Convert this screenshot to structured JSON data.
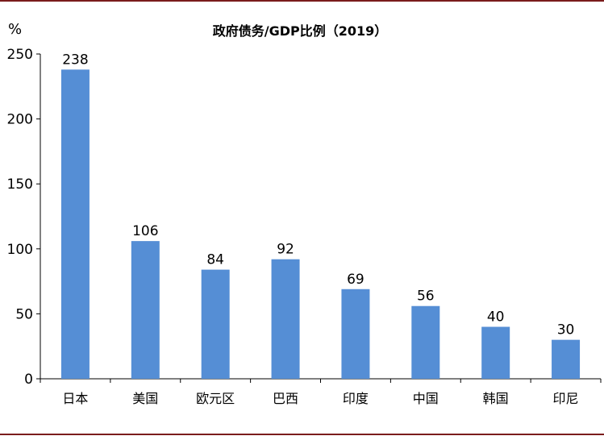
{
  "chart_data": {
    "type": "bar",
    "title": "政府债务/GDP比例（2019）",
    "ylabel": "%",
    "xlabel": "",
    "categories": [
      "日本",
      "美国",
      "欧元区",
      "巴西",
      "印度",
      "中国",
      "韩国",
      "印尼"
    ],
    "values": [
      238,
      106,
      84,
      92,
      69,
      56,
      40,
      30
    ],
    "ylim": [
      0,
      250
    ],
    "yticks": [
      0,
      50,
      100,
      150,
      200,
      250
    ],
    "grid": false,
    "legend": "none",
    "bar_color": "#558ed5",
    "border_color": "#7a1c1c"
  }
}
